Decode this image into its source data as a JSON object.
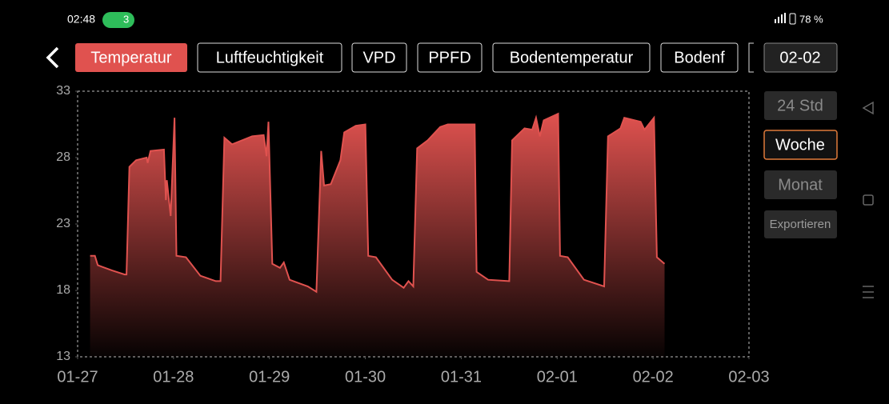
{
  "status_bar": {
    "time": "02:48",
    "wifi_badge": "3",
    "battery": "78 %"
  },
  "tabs": [
    "Temperatur",
    "Luftfeuchtigkeit",
    "VPD",
    "PPFD",
    "Bodentemperatur",
    "Bodenf"
  ],
  "date_button": "02-02",
  "range_buttons": [
    "24 Std",
    "Woche",
    "Monat",
    "Exportieren"
  ],
  "chart_data": {
    "type": "area",
    "color": "#e0524f",
    "x": [
      0.13,
      0.18,
      0.21,
      0.36,
      0.49,
      0.51,
      0.54,
      0.61,
      0.72,
      0.73,
      0.76,
      0.9,
      0.92,
      0.93,
      0.97,
      1.01,
      1.03,
      1.13,
      1.28,
      1.44,
      1.49,
      1.53,
      1.61,
      1.82,
      1.94,
      1.97,
      1.99,
      2.03,
      2.11,
      2.15,
      2.21,
      2.4,
      2.49,
      2.54,
      2.57,
      2.64,
      2.74,
      2.78,
      2.9,
      3.0,
      3.03,
      3.11,
      3.28,
      3.4,
      3.45,
      3.5,
      3.54,
      3.65,
      3.78,
      3.86,
      4.14,
      4.16,
      4.28,
      4.5,
      4.53,
      4.66,
      4.74,
      4.78,
      4.82,
      4.86,
      5.01,
      5.03,
      5.11,
      5.28,
      5.49,
      5.53,
      5.66,
      5.7,
      5.87,
      5.91,
      6.01,
      6.04,
      6.12
    ],
    "values": [
      20.6,
      20.6,
      19.9,
      19.5,
      19.2,
      19.2,
      27.3,
      27.8,
      28.0,
      27.6,
      28.5,
      28.6,
      24.8,
      26.3,
      23.6,
      31.0,
      20.6,
      20.5,
      19.1,
      18.7,
      18.7,
      29.5,
      29.0,
      29.6,
      29.7,
      28.1,
      30.7,
      20.0,
      19.7,
      20.1,
      18.8,
      18.3,
      17.9,
      28.5,
      25.9,
      26.0,
      27.8,
      29.9,
      30.4,
      30.5,
      20.6,
      20.5,
      18.8,
      18.2,
      18.7,
      18.3,
      28.7,
      29.3,
      30.3,
      30.5,
      30.5,
      19.4,
      18.8,
      18.7,
      29.3,
      30.2,
      30.1,
      31.0,
      29.6,
      30.8,
      31.3,
      20.6,
      20.5,
      18.8,
      18.3,
      29.6,
      30.2,
      31.0,
      30.7,
      30.1,
      31.0,
      20.5,
      20.0
    ],
    "xlim": [
      0,
      7
    ],
    "xticks": [
      {
        "value": 0,
        "label": "01-27"
      },
      {
        "value": 1,
        "label": "01-28"
      },
      {
        "value": 2,
        "label": "01-29"
      },
      {
        "value": 3,
        "label": "01-30"
      },
      {
        "value": 4,
        "label": "01-31"
      },
      {
        "value": 5,
        "label": "02-01"
      },
      {
        "value": 6,
        "label": "02-02"
      },
      {
        "value": 7,
        "label": "02-03"
      }
    ],
    "ylim": [
      13,
      33
    ],
    "yticks": [
      13,
      18,
      23,
      28,
      33
    ]
  }
}
